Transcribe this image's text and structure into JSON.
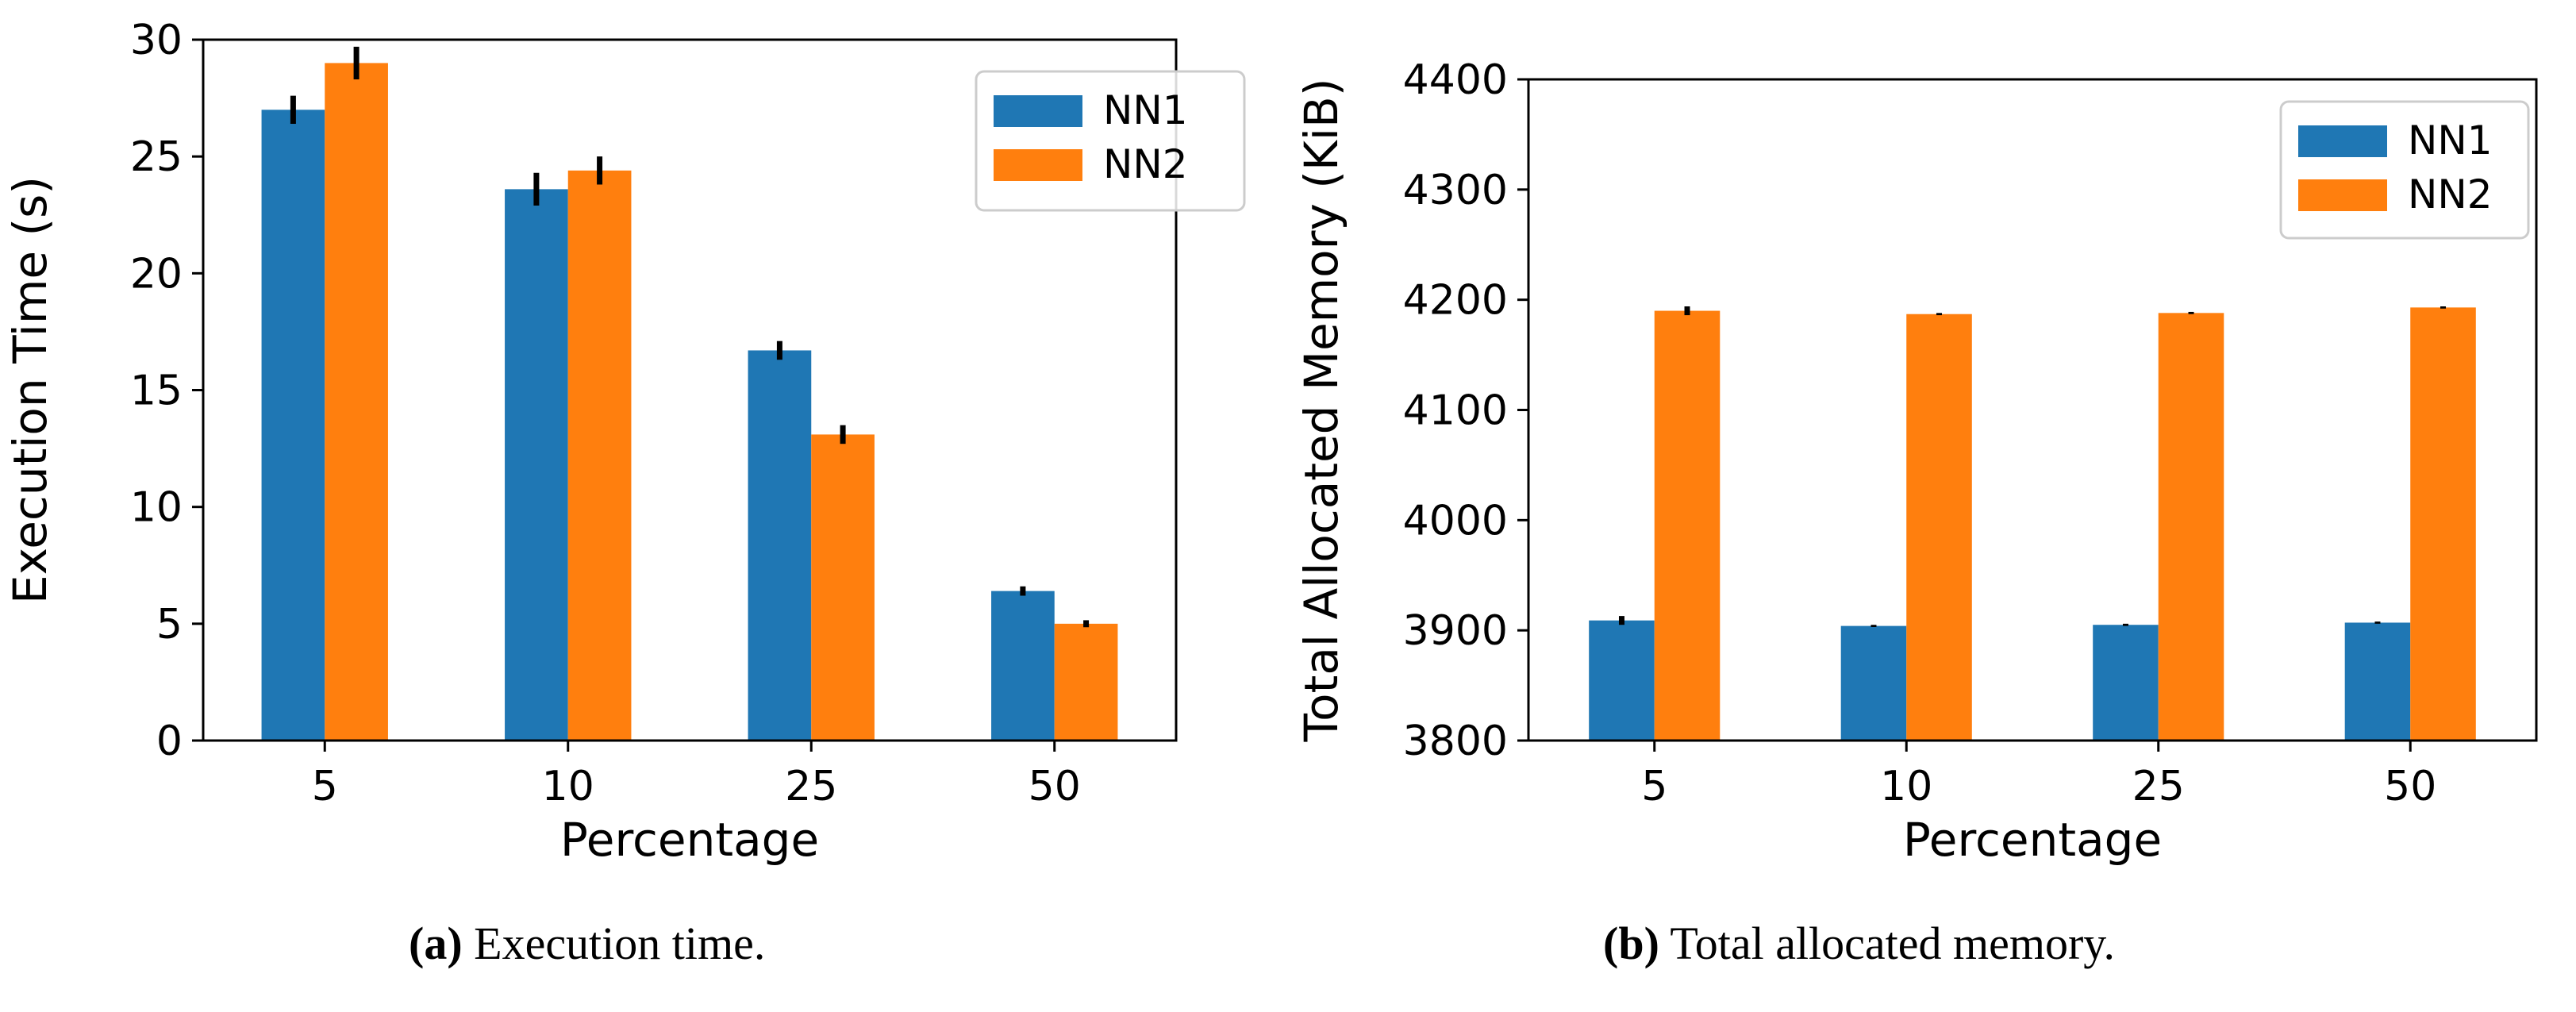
{
  "colors": {
    "nn1": "#1f77b4",
    "nn2": "#ff7f0e",
    "errorbar": "#000000",
    "axis": "#000000",
    "legend_border": "#cccccc"
  },
  "chart_data": [
    {
      "type": "bar",
      "title": "",
      "categories": [
        "5",
        "10",
        "25",
        "50"
      ],
      "xlabel": "Percentage",
      "ylabel": "Execution Time (s)",
      "ylim": [
        0,
        30
      ],
      "yticks": [
        0,
        5,
        10,
        15,
        20,
        25,
        30
      ],
      "ytick_labels": [
        "0",
        "5",
        "10",
        "15",
        "20",
        "25",
        "30"
      ],
      "grid": false,
      "legend": {
        "position": "top-right",
        "entries": [
          "NN1",
          "NN2"
        ]
      },
      "series": [
        {
          "name": "NN1",
          "values": [
            27.0,
            23.6,
            16.7,
            6.4
          ],
          "errors": [
            0.6,
            0.7,
            0.4,
            0.2
          ]
        },
        {
          "name": "NN2",
          "values": [
            29.0,
            24.4,
            13.1,
            5.0
          ],
          "errors": [
            0.7,
            0.6,
            0.4,
            0.15
          ]
        }
      ]
    },
    {
      "type": "bar",
      "title": "",
      "categories": [
        "5",
        "10",
        "25",
        "50"
      ],
      "xlabel": "Percentage",
      "ylabel": "Total Allocated Memory (KiB)",
      "ylim": [
        3800,
        4400
      ],
      "yticks": [
        3800,
        3900,
        4000,
        4100,
        4200,
        4300,
        4400
      ],
      "ytick_labels": [
        "3800",
        "3900",
        "4000",
        "4100",
        "4200",
        "4300",
        "4400"
      ],
      "grid": false,
      "legend": {
        "position": "top-right",
        "entries": [
          "NN1",
          "NN2"
        ]
      },
      "series": [
        {
          "name": "NN1",
          "values": [
            3909,
            3904,
            3905,
            3907
          ],
          "errors": [
            4,
            1,
            1,
            1
          ]
        },
        {
          "name": "NN2",
          "values": [
            4190,
            4187,
            4188,
            4193
          ],
          "errors": [
            4,
            1,
            1,
            1
          ]
        }
      ]
    }
  ],
  "captions": [
    {
      "label": "(a)",
      "text": "Execution time."
    },
    {
      "label": "(b)",
      "text": "Total allocated memory."
    }
  ]
}
